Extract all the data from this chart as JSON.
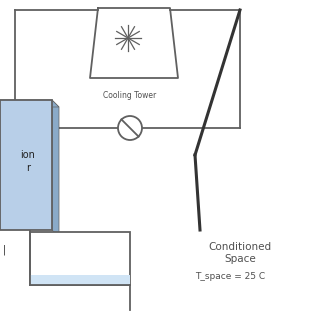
{
  "bg_color": "#ffffff",
  "line_color": "#606060",
  "box_fill": "#b8cfe8",
  "box_stroke": "#606060",
  "box_shadow_color": "#8aaac8",
  "text_color": "#505050",
  "cooling_tower_label": "Cooling Tower",
  "left_box_label1": "ion",
  "left_box_label2": "r",
  "conditioned_space_label": "Conditioned\nSpace",
  "temp_label": "T_space = 25 C",
  "figsize": [
    3.2,
    3.2
  ],
  "dpi": 100,
  "wall_color": "#333333"
}
